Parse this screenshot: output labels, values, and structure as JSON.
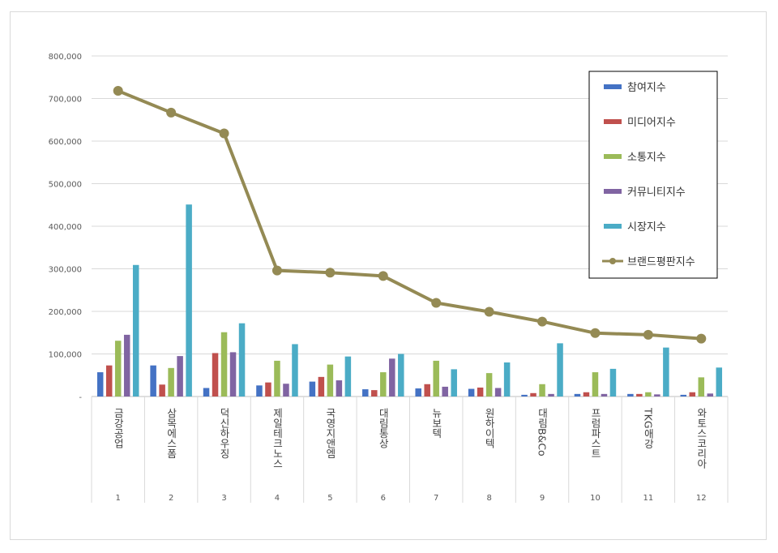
{
  "chart_data": {
    "type": "bar",
    "categories": [
      "금강공업",
      "삼목에스폼",
      "덕신하우징",
      "제일테크노스",
      "국영지앤엠",
      "대림통상",
      "뉴보텍",
      "원하이텍",
      "대림B&Co",
      "프럼파스트",
      "TKG애강",
      "와토스코리아"
    ],
    "ranks": [
      "1",
      "2",
      "3",
      "4",
      "5",
      "6",
      "7",
      "8",
      "9",
      "10",
      "11",
      "12"
    ],
    "ylim": [
      0,
      800000
    ],
    "yticks": [
      "-",
      "100,000",
      "200,000",
      "300,000",
      "400,000",
      "500,000",
      "600,000",
      "700,000",
      "800,000"
    ],
    "legend_position": "top-right",
    "grid": true,
    "series": [
      {
        "name": "참여지수",
        "type": "bar",
        "color": "#4472c4",
        "values": [
          57000,
          73000,
          20000,
          26000,
          35000,
          17000,
          19000,
          18000,
          4000,
          6000,
          6000,
          4000
        ]
      },
      {
        "name": "미디어지수",
        "type": "bar",
        "color": "#c0504d",
        "values": [
          73000,
          28000,
          102000,
          33000,
          46000,
          15000,
          29000,
          21000,
          8000,
          10000,
          6000,
          10000
        ]
      },
      {
        "name": "소통지수",
        "type": "bar",
        "color": "#9bbb59",
        "values": [
          131000,
          67000,
          151000,
          84000,
          75000,
          57000,
          84000,
          55000,
          29000,
          57000,
          10000,
          45000
        ]
      },
      {
        "name": "커뮤니티지수",
        "type": "bar",
        "color": "#8064a2",
        "values": [
          145000,
          95000,
          104000,
          30000,
          38000,
          89000,
          23000,
          20000,
          6000,
          6000,
          5000,
          7000
        ]
      },
      {
        "name": "시장지수",
        "type": "bar",
        "color": "#4bacc6",
        "values": [
          309000,
          451000,
          172000,
          123000,
          94000,
          100000,
          64000,
          80000,
          125000,
          65000,
          115000,
          68000
        ]
      },
      {
        "name": "브랜드평판지수",
        "type": "line",
        "color": "#948a54",
        "values": [
          718000,
          667000,
          618000,
          296000,
          291000,
          283000,
          220000,
          199000,
          176000,
          149000,
          145000,
          136000
        ]
      }
    ]
  }
}
